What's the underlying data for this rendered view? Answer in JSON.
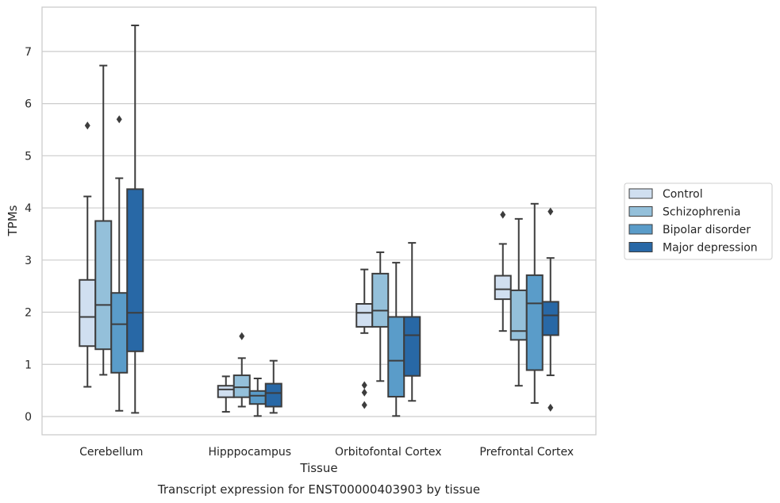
{
  "caption": "Transcript expression for ENST00000403903 by tissue",
  "chart_data": {
    "type": "box",
    "title": "",
    "xlabel": "Tissue",
    "ylabel": "TPMs",
    "ylim": [
      -0.35,
      7.85
    ],
    "yticks": [
      0,
      1,
      2,
      3,
      4,
      5,
      6,
      7
    ],
    "categories": [
      "Cerebellum",
      "Hipppocampus",
      "Orbitofontal Cortex",
      "Prefrontal Cortex"
    ],
    "grid": "horizontal",
    "legend_position": "right",
    "series": [
      {
        "name": "Control",
        "color": "#d0dff0",
        "boxes": [
          {
            "whislo": 0.57,
            "q1": 1.35,
            "med": 1.91,
            "q3": 2.62,
            "whishi": 4.22,
            "fliers": [
              5.58
            ]
          },
          {
            "whislo": 0.09,
            "q1": 0.37,
            "med": 0.52,
            "q3": 0.59,
            "whishi": 0.77,
            "fliers": []
          },
          {
            "whislo": 1.6,
            "q1": 1.72,
            "med": 1.99,
            "q3": 2.16,
            "whishi": 2.82,
            "fliers": [
              0.6,
              0.46,
              0.22
            ]
          },
          {
            "whislo": 1.64,
            "q1": 2.25,
            "med": 2.44,
            "q3": 2.7,
            "whishi": 3.31,
            "fliers": [
              3.87
            ]
          }
        ]
      },
      {
        "name": "Schizophrenia",
        "color": "#94c0da",
        "boxes": [
          {
            "whislo": 0.8,
            "q1": 1.29,
            "med": 2.14,
            "q3": 3.75,
            "whishi": 6.73,
            "fliers": []
          },
          {
            "whislo": 0.19,
            "q1": 0.37,
            "med": 0.56,
            "q3": 0.79,
            "whishi": 1.12,
            "fliers": [
              1.54
            ]
          },
          {
            "whislo": 0.68,
            "q1": 1.72,
            "med": 2.03,
            "q3": 2.74,
            "whishi": 3.15,
            "fliers": []
          },
          {
            "whislo": 0.59,
            "q1": 1.47,
            "med": 1.64,
            "q3": 2.42,
            "whishi": 3.79,
            "fliers": []
          }
        ]
      },
      {
        "name": "Bipolar disorder",
        "color": "#5a9cc9",
        "boxes": [
          {
            "whislo": 0.11,
            "q1": 0.84,
            "med": 1.77,
            "q3": 2.37,
            "whishi": 4.57,
            "fliers": [
              5.7
            ]
          },
          {
            "whislo": 0.01,
            "q1": 0.24,
            "med": 0.4,
            "q3": 0.49,
            "whishi": 0.73,
            "fliers": []
          },
          {
            "whislo": 0.01,
            "q1": 0.38,
            "med": 1.07,
            "q3": 1.91,
            "whishi": 2.95,
            "fliers": []
          },
          {
            "whislo": 0.26,
            "q1": 0.89,
            "med": 2.17,
            "q3": 2.71,
            "whishi": 4.08,
            "fliers": []
          }
        ]
      },
      {
        "name": "Major depression",
        "color": "#2868a6",
        "boxes": [
          {
            "whislo": 0.07,
            "q1": 1.25,
            "med": 1.99,
            "q3": 4.36,
            "whishi": 7.5,
            "fliers": []
          },
          {
            "whislo": 0.07,
            "q1": 0.19,
            "med": 0.45,
            "q3": 0.63,
            "whishi": 1.07,
            "fliers": []
          },
          {
            "whislo": 0.3,
            "q1": 0.78,
            "med": 1.56,
            "q3": 1.91,
            "whishi": 3.33,
            "fliers": []
          },
          {
            "whislo": 0.79,
            "q1": 1.56,
            "med": 1.94,
            "q3": 2.2,
            "whishi": 3.04,
            "fliers": [
              3.93,
              0.17
            ]
          }
        ]
      }
    ]
  }
}
